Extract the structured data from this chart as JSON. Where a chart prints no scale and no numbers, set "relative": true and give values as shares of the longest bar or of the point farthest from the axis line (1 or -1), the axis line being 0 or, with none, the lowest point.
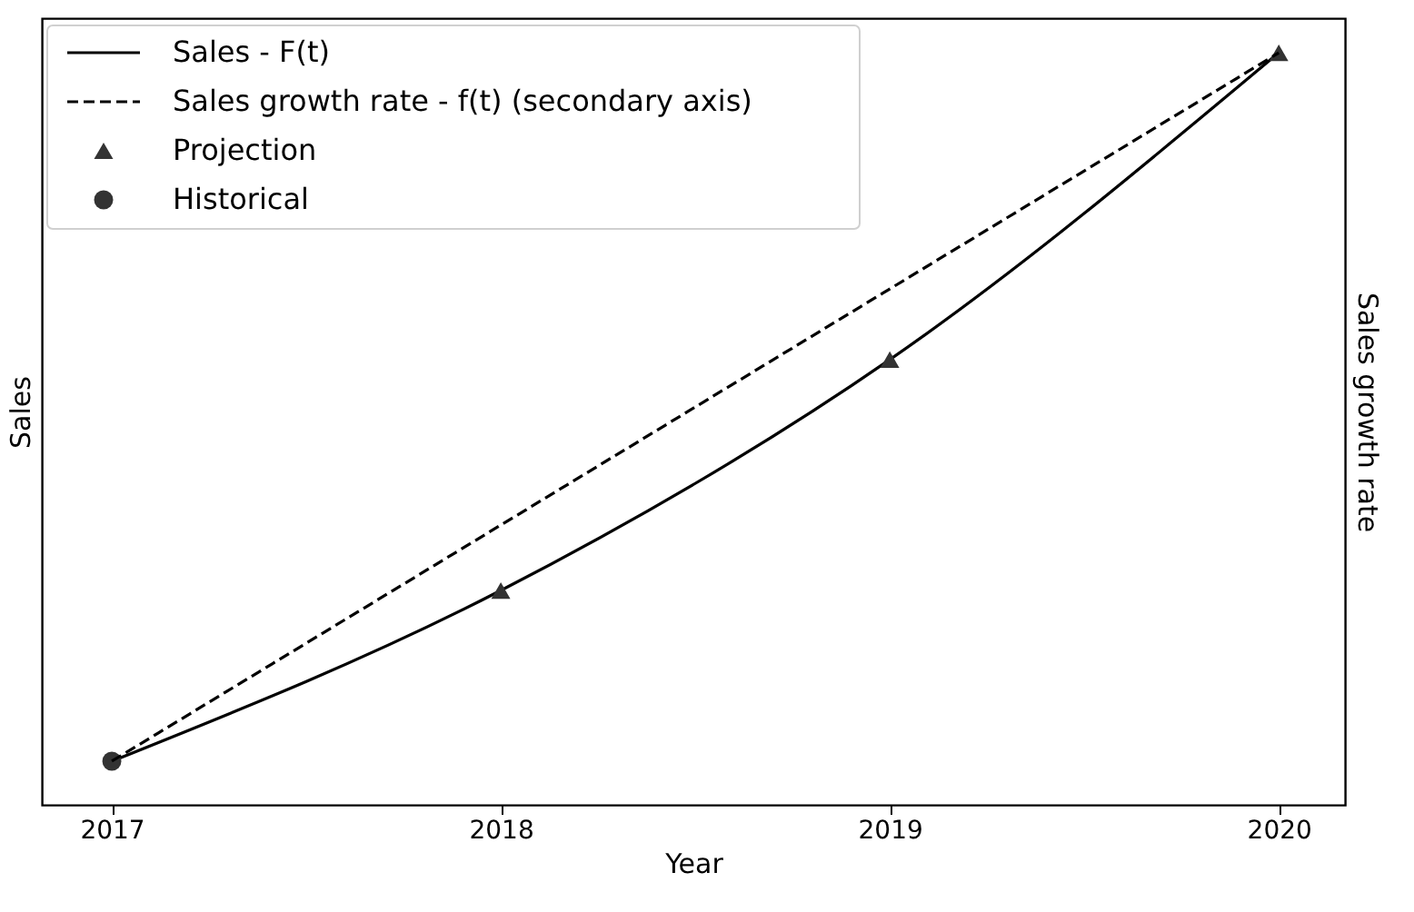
{
  "chart_data": {
    "type": "line",
    "relative": true,
    "xlabel": "Year",
    "ylabel": "Sales",
    "y2label": "Sales growth rate",
    "xlim": [
      2016.82,
      2020.17
    ],
    "xticks": [
      2017,
      2018,
      2019,
      2020
    ],
    "legend": "top left",
    "grid": false,
    "series": [
      {
        "name": "Sales - F(t)",
        "color": "#000000",
        "line_style": "solid",
        "marker": "none",
        "x": [
          2017,
          2018,
          2019,
          2020
        ],
        "values": [
          0.058,
          0.285,
          0.592,
          1.0
        ]
      },
      {
        "name": "Sales growth rate - f(t) (secondary axis)",
        "axis": "y2",
        "color": "#000000",
        "line_style": "dashed",
        "marker": "none",
        "x": [
          2017,
          2018,
          2019,
          2020
        ],
        "values": [
          0.058,
          0.372,
          0.686,
          1.0
        ]
      },
      {
        "name": "Projection",
        "type": "scatter",
        "marker": "triangle",
        "color": "#333333",
        "x": [
          2018,
          2019,
          2020
        ],
        "values": [
          0.285,
          0.592,
          1.0
        ]
      },
      {
        "name": "Historical",
        "type": "scatter",
        "marker": "circle",
        "color": "#333333",
        "x": [
          2017
        ],
        "values": [
          0.058
        ]
      }
    ]
  }
}
